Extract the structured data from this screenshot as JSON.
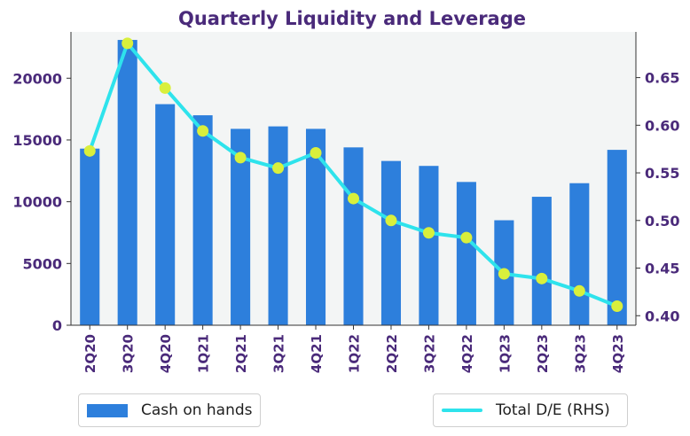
{
  "chart_data": {
    "type": "bar",
    "title": "Quarterly Liquidity and Leverage",
    "categories": [
      "2Q20",
      "3Q20",
      "4Q20",
      "1Q21",
      "2Q21",
      "3Q21",
      "4Q21",
      "1Q22",
      "2Q22",
      "3Q22",
      "4Q22",
      "1Q23",
      "2Q23",
      "3Q23",
      "4Q23"
    ],
    "series": [
      {
        "name": "Cash on hands",
        "kind": "bar",
        "axis": "left",
        "values": [
          14300,
          23100,
          17900,
          17000,
          15900,
          16100,
          15900,
          14400,
          13300,
          12900,
          11600,
          8500,
          10400,
          11500,
          14200
        ]
      },
      {
        "name": "Total D/E (RHS)",
        "kind": "line",
        "axis": "right",
        "values": [
          0.573,
          0.686,
          0.639,
          0.594,
          0.566,
          0.555,
          0.571,
          0.523,
          0.5,
          0.487,
          0.482,
          0.444,
          0.439,
          0.426,
          0.41
        ]
      }
    ],
    "y_left": {
      "min": 0,
      "max": 23750,
      "ticks": [
        0,
        5000,
        10000,
        15000,
        20000
      ]
    },
    "y_right": {
      "min": 0.39,
      "max": 0.698,
      "ticks": [
        "0.40",
        "0.45",
        "0.50",
        "0.55",
        "0.60",
        "0.65"
      ]
    },
    "legend_position": "bottom",
    "grid": false,
    "colors": {
      "bar": "#2d7fdc",
      "line": "#2ee3ec",
      "marker": "#d9ef3c",
      "title": "#4a2a7a",
      "axis_text": "#4a2a7a",
      "plot_bg": "#f3f5f5"
    }
  }
}
